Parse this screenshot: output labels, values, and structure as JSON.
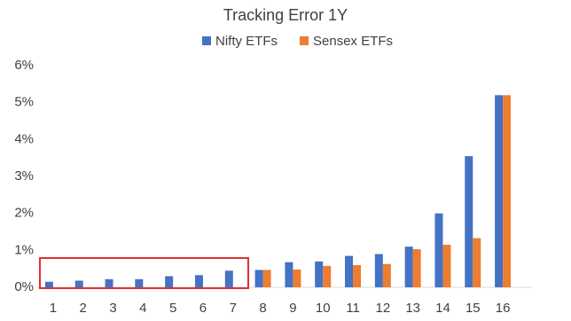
{
  "chart_data": {
    "type": "bar",
    "title": "Tracking Error 1Y",
    "categories": [
      "1",
      "2",
      "3",
      "4",
      "5",
      "6",
      "7",
      "8",
      "9",
      "10",
      "11",
      "12",
      "13",
      "14",
      "15",
      "16"
    ],
    "series": [
      {
        "name": "Nifty ETFs",
        "color": "#4472c4",
        "values": [
          0.15,
          0.18,
          0.22,
          0.22,
          0.3,
          0.33,
          0.45,
          0.47,
          0.68,
          0.7,
          0.85,
          0.9,
          1.1,
          2.0,
          3.55,
          5.2
        ]
      },
      {
        "name": "Sensex ETFs",
        "color": "#ed7d31",
        "values": [
          null,
          null,
          null,
          null,
          null,
          null,
          null,
          0.47,
          0.48,
          0.58,
          0.6,
          0.63,
          1.03,
          1.15,
          1.33,
          5.2
        ]
      }
    ],
    "ylim": [
      0,
      6
    ],
    "yticks": [
      {
        "value": 0,
        "label": "0%"
      },
      {
        "value": 1,
        "label": "1%"
      },
      {
        "value": 2,
        "label": "2%"
      },
      {
        "value": 3,
        "label": "3%"
      },
      {
        "value": 4,
        "label": "4%"
      },
      {
        "value": 5,
        "label": "5%"
      },
      {
        "value": 6,
        "label": "6%"
      }
    ],
    "grid": false,
    "legend": "top"
  }
}
